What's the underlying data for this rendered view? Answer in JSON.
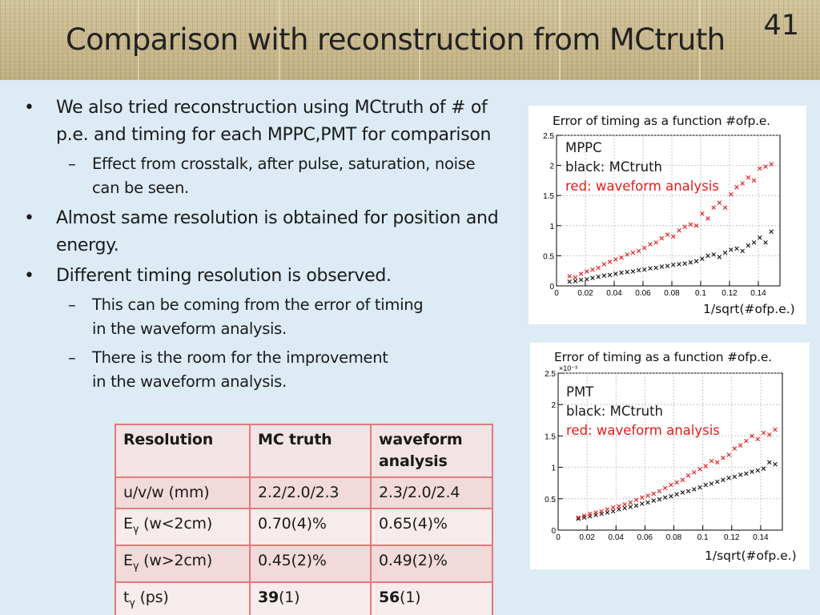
{
  "slide": {
    "title": "Comparison with reconstruction from MCtruth",
    "page_number": "41"
  },
  "bullets": [
    {
      "level": 1,
      "text": "We also tried reconstruction using MCtruth of # of",
      "cont": "p.e. and timing for each MPPC,PMT for comparison"
    },
    {
      "level": 2,
      "text": "Effect from crosstalk, after pulse, saturation, noise",
      "cont": "can be seen."
    },
    {
      "level": 1,
      "text": "Almost same resolution is obtained for position and",
      "cont": "energy."
    },
    {
      "level": 1,
      "text": "Different timing resolution is observed.",
      "cont": ""
    },
    {
      "level": 2,
      "text": "This can be coming from the error of timing",
      "cont": "in the waveform analysis."
    },
    {
      "level": 2,
      "text": "There is the room for the improvement",
      "cont": "in the waveform analysis."
    }
  ],
  "table": {
    "headers": [
      "Resolution",
      "MC truth",
      "waveform analysis"
    ],
    "rows": [
      {
        "label": "u/v/w (mm)",
        "mc": "2.2/2.0/2.3",
        "wf": "2.3/2.0/2.4"
      },
      {
        "label_main": "E",
        "label_sub": "γ",
        "label_rest": " (w<2cm)",
        "mc": "0.70(4)%",
        "wf": "0.65(4)%"
      },
      {
        "label_main": "E",
        "label_sub": "γ",
        "label_rest": " (w>2cm)",
        "mc": "0.45(2)%",
        "wf": "0.49(2)%"
      },
      {
        "label_main": "t",
        "label_sub": "γ",
        "label_rest": " (ps)",
        "mc_bold": "39",
        "mc_rest": "(1)",
        "wf_bold": "56",
        "wf_rest": "(1)"
      }
    ]
  },
  "chart_data": [
    {
      "type": "scatter",
      "title": "Error of timing as a function #ofp.e.",
      "xlabel": "1/sqrt(#ofp.e.)",
      "ylabel": "",
      "xlim": [
        0,
        0.155
      ],
      "ylim": [
        0,
        2.5
      ],
      "xticks": [
        "0",
        "0.02",
        "0.04",
        "0.06",
        "0.08",
        "0.1",
        "0.12",
        "0.14"
      ],
      "yticks": [
        "0",
        "0.5",
        "1",
        "1.5",
        "2",
        "2.5"
      ],
      "legend": [
        "MPPC",
        "black: MCtruth",
        "red: waveform analysis"
      ],
      "grid": true,
      "colors": {
        "mctruth": "#111111",
        "waveform": "#e51b1b"
      },
      "series": [
        {
          "name": "black: MCtruth",
          "color": "#111111",
          "x": [
            0.009,
            0.013,
            0.017,
            0.021,
            0.025,
            0.029,
            0.033,
            0.037,
            0.041,
            0.045,
            0.049,
            0.053,
            0.057,
            0.061,
            0.065,
            0.069,
            0.073,
            0.077,
            0.081,
            0.085,
            0.089,
            0.093,
            0.097,
            0.101,
            0.105,
            0.109,
            0.113,
            0.117,
            0.121,
            0.125,
            0.129,
            0.133,
            0.137,
            0.141,
            0.145,
            0.149
          ],
          "y": [
            0.07,
            0.08,
            0.1,
            0.11,
            0.13,
            0.15,
            0.17,
            0.18,
            0.2,
            0.22,
            0.23,
            0.24,
            0.26,
            0.27,
            0.29,
            0.3,
            0.32,
            0.33,
            0.35,
            0.36,
            0.37,
            0.39,
            0.41,
            0.45,
            0.5,
            0.52,
            0.48,
            0.55,
            0.6,
            0.62,
            0.58,
            0.67,
            0.72,
            0.8,
            0.72,
            0.9
          ]
        },
        {
          "name": "red: waveform analysis",
          "color": "#e51b1b",
          "x": [
            0.009,
            0.013,
            0.017,
            0.021,
            0.025,
            0.029,
            0.033,
            0.037,
            0.041,
            0.045,
            0.049,
            0.053,
            0.057,
            0.061,
            0.065,
            0.069,
            0.073,
            0.077,
            0.081,
            0.085,
            0.089,
            0.093,
            0.097,
            0.101,
            0.105,
            0.109,
            0.113,
            0.117,
            0.121,
            0.125,
            0.129,
            0.133,
            0.137,
            0.141,
            0.145,
            0.149
          ],
          "y": [
            0.16,
            0.14,
            0.2,
            0.24,
            0.27,
            0.3,
            0.36,
            0.4,
            0.44,
            0.47,
            0.52,
            0.55,
            0.58,
            0.63,
            0.69,
            0.72,
            0.79,
            0.85,
            0.82,
            0.92,
            0.98,
            1.02,
            1.0,
            1.2,
            1.12,
            1.3,
            1.38,
            1.3,
            1.52,
            1.64,
            1.7,
            1.8,
            1.75,
            1.95,
            1.98,
            2.02
          ]
        }
      ]
    },
    {
      "type": "scatter",
      "title": "Error of timing as a function #ofp.e.",
      "xlabel": "1/sqrt(#ofp.e.)",
      "ylabel": "",
      "y_multiplier": "×10⁻³",
      "xlim": [
        0,
        0.155
      ],
      "ylim": [
        0,
        2.5
      ],
      "xticks": [
        "0",
        "0.02",
        "0.04",
        "0.06",
        "0.08",
        "0.1",
        "0.12",
        "0.14"
      ],
      "yticks": [
        "0",
        "0.5",
        "1",
        "1.5",
        "2",
        "2.5"
      ],
      "legend": [
        "PMT",
        "black: MCtruth",
        "red: waveform analysis"
      ],
      "grid": true,
      "colors": {
        "mctruth": "#111111",
        "waveform": "#e51b1b"
      },
      "series": [
        {
          "name": "black: MCtruth",
          "color": "#111111",
          "x": [
            0.014,
            0.018,
            0.022,
            0.026,
            0.03,
            0.034,
            0.038,
            0.042,
            0.046,
            0.05,
            0.054,
            0.058,
            0.062,
            0.066,
            0.07,
            0.074,
            0.078,
            0.082,
            0.086,
            0.09,
            0.094,
            0.098,
            0.102,
            0.106,
            0.11,
            0.114,
            0.118,
            0.122,
            0.126,
            0.13,
            0.134,
            0.138,
            0.142,
            0.146,
            0.15
          ],
          "y": [
            0.18,
            0.2,
            0.22,
            0.24,
            0.26,
            0.28,
            0.3,
            0.33,
            0.35,
            0.37,
            0.39,
            0.42,
            0.44,
            0.47,
            0.49,
            0.52,
            0.54,
            0.57,
            0.6,
            0.62,
            0.65,
            0.68,
            0.72,
            0.74,
            0.77,
            0.8,
            0.83,
            0.85,
            0.88,
            0.9,
            0.93,
            0.95,
            0.98,
            1.08,
            1.05
          ]
        },
        {
          "name": "red: waveform analysis",
          "color": "#e51b1b",
          "x": [
            0.014,
            0.018,
            0.022,
            0.026,
            0.03,
            0.034,
            0.038,
            0.042,
            0.046,
            0.05,
            0.054,
            0.058,
            0.062,
            0.066,
            0.07,
            0.074,
            0.078,
            0.082,
            0.086,
            0.09,
            0.094,
            0.098,
            0.102,
            0.106,
            0.11,
            0.114,
            0.118,
            0.122,
            0.126,
            0.13,
            0.134,
            0.138,
            0.142,
            0.146,
            0.15
          ],
          "y": [
            0.2,
            0.23,
            0.26,
            0.28,
            0.3,
            0.33,
            0.36,
            0.38,
            0.41,
            0.44,
            0.48,
            0.52,
            0.55,
            0.58,
            0.62,
            0.67,
            0.72,
            0.76,
            0.8,
            0.87,
            0.92,
            0.97,
            1.02,
            1.1,
            1.08,
            1.15,
            1.2,
            1.3,
            1.35,
            1.42,
            1.5,
            1.45,
            1.55,
            1.52,
            1.6
          ]
        }
      ]
    }
  ]
}
